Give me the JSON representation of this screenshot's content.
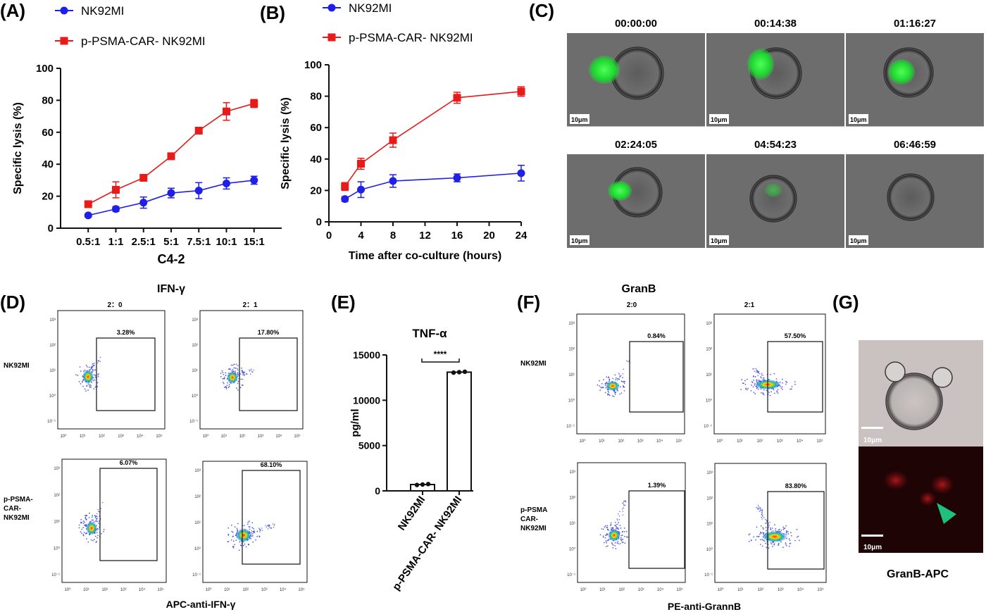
{
  "panels": {
    "A": "(A)",
    "B": "(B)",
    "C": "(C)",
    "D": "(D)",
    "E": "(E)",
    "F": "(F)",
    "G": "(G)"
  },
  "legend": {
    "nk": "NK92MI",
    "car": "p-PSMA-CAR- NK92MI"
  },
  "colors": {
    "nk": "#1f1fe8",
    "car": "#e81a1a",
    "green": "#1ee33a",
    "red": "#b0161c"
  },
  "chart_data": [
    {
      "type": "line",
      "panel": "A",
      "categories": [
        "0.5:1",
        "1:1",
        "2.5:1",
        "5:1",
        "7.5:1",
        "10:1",
        "15:1"
      ],
      "xlabel": "C4-2",
      "ylabel": "Specific lysis (%)",
      "ylim": [
        0,
        100
      ],
      "yticks": [
        0,
        20,
        40,
        60,
        80,
        100
      ],
      "series": [
        {
          "name": "NK92MI",
          "values": [
            8,
            12,
            16,
            22,
            23.5,
            28,
            30
          ],
          "err": [
            1,
            1.5,
            3.5,
            3,
            5,
            3.5,
            2.5
          ]
        },
        {
          "name": "p-PSMA-CAR- NK92MI",
          "values": [
            15,
            24,
            31.5,
            45,
            61,
            73,
            78
          ],
          "err": [
            1.5,
            5,
            1.5,
            1.5,
            1.5,
            5.5,
            2.5
          ]
        }
      ]
    },
    {
      "type": "line",
      "panel": "B",
      "x": [
        2,
        4,
        8,
        16,
        24
      ],
      "xlabel": "Time after co-culture (hours)",
      "ylabel": "Specific lysis (%)",
      "xlim": [
        0,
        24
      ],
      "xticks": [
        0,
        4,
        8,
        12,
        16,
        20,
        24
      ],
      "ylim": [
        0,
        100
      ],
      "yticks": [
        0,
        20,
        40,
        60,
        80,
        100
      ],
      "series": [
        {
          "name": "NK92MI",
          "values": [
            14.5,
            20.5,
            26,
            28,
            31
          ],
          "err": [
            1.5,
            5,
            4,
            2.5,
            5
          ]
        },
        {
          "name": "p-PSMA-CAR- NK92MI",
          "values": [
            22.5,
            37,
            52,
            79,
            83
          ],
          "err": [
            2.5,
            3.5,
            4.5,
            3.5,
            3
          ]
        }
      ]
    },
    {
      "type": "bar",
      "panel": "E",
      "title": "TNF-α",
      "categories": [
        "NK92MI",
        "p-PSMA-CAR- NK92MI"
      ],
      "values": [
        700,
        13100
      ],
      "points": [
        [
          650,
          700,
          750
        ],
        [
          13050,
          13100,
          13150
        ]
      ],
      "ylabel": "pg/ml",
      "ylim": [
        0,
        15000
      ],
      "yticks": [
        0,
        5000,
        10000,
        15000
      ],
      "significance": "****"
    }
  ],
  "timelapse": {
    "times": [
      "00:00:00",
      "00:14:38",
      "01:16:27",
      "02:24:05",
      "04:54:23",
      "06:46:59"
    ],
    "scale": "10μm"
  },
  "flow_D": {
    "title": "IFN-γ",
    "cols": [
      "2：0",
      "2：1"
    ],
    "rows": [
      "NK92MI",
      "p-PSMA-\nCAR-\nNK92MI"
    ],
    "pcts": [
      "3.28%",
      "17.80%",
      "6.07%",
      "68.10%"
    ],
    "xlabel": "APC-anti-IFN-γ"
  },
  "flow_F": {
    "title": "GranB",
    "cols": [
      "2:0",
      "2:1"
    ],
    "rows": [
      "NK92MI",
      "p-PSMA\nCAR-\nNK92MI"
    ],
    "pcts": [
      "0.84%",
      "57.50%",
      "1.39%",
      "83.80%"
    ],
    "xlabel": "PE-anti-GrannB"
  },
  "panel_G": {
    "scale": "10μm",
    "caption": "GranB-APC"
  }
}
